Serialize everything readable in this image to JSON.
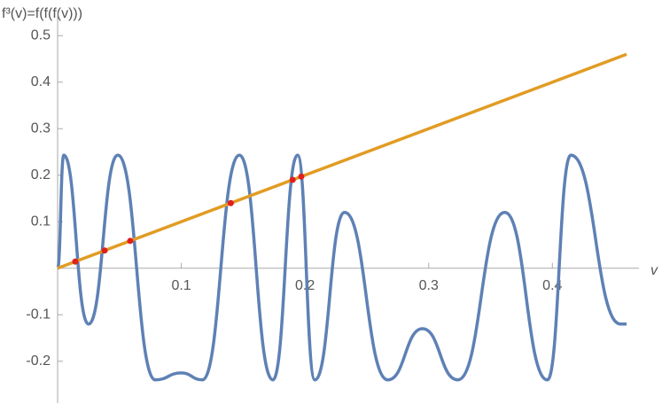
{
  "chart_data": {
    "type": "line",
    "y_label": "f³(v)=f(f(f(v)))",
    "x_label": "v",
    "xlim": [
      0,
      0.47
    ],
    "ylim": [
      -0.29,
      0.55
    ],
    "xticks": [
      0.1,
      0.2,
      0.3,
      0.4
    ],
    "yticks": [
      -0.2,
      -0.1,
      0.1,
      0.2,
      0.3,
      0.4,
      0.5
    ],
    "grid": false,
    "series": [
      {
        "color": "#5e81b5",
        "smooth": true,
        "x": [
          0,
          0.005,
          0.025,
          0.0487,
          0.079,
          0.1,
          0.117,
          0.147,
          0.174,
          0.194,
          0.208,
          0.232,
          0.267,
          0.295,
          0.3235,
          0.3615,
          0.396,
          0.415,
          0.455,
          0.46
        ],
        "values": [
          0,
          0.243,
          -0.12,
          0.243,
          -0.24,
          -0.225,
          -0.24,
          0.243,
          -0.24,
          0.243,
          -0.24,
          0.12,
          -0.24,
          -0.13,
          -0.24,
          0.12,
          -0.24,
          0.243,
          -0.12,
          -0.12
        ]
      },
      {
        "color": "#e19c24",
        "smooth": false,
        "x": [
          0,
          0.46
        ],
        "values": [
          0,
          0.46
        ]
      },
      {
        "color": "#e0201b",
        "type": "scatter",
        "x": [
          0.0143,
          0.038,
          0.0587,
          0.14,
          0.19,
          0.197
        ],
        "values": [
          0.0143,
          0.038,
          0.0587,
          0.14,
          0.19,
          0.197
        ]
      }
    ]
  }
}
